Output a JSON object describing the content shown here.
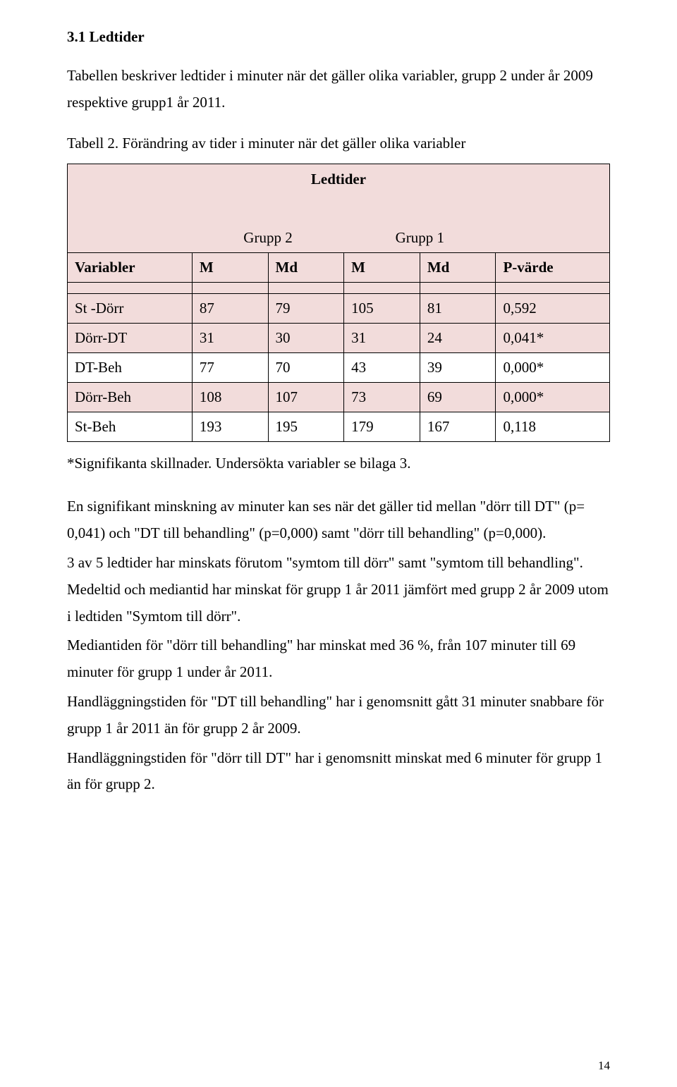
{
  "heading": "3.1 Ledtider",
  "intro": "Tabellen beskriver ledtider i minuter när det gäller olika variabler, grupp 2 under år 2009 respektive grupp1 år 2011.",
  "tableCaption": "Tabell 2. Förändring av tider i minuter när det gäller olika variabler",
  "table": {
    "title": "Ledtider",
    "group2": "Grupp 2",
    "group1": "Grupp 1",
    "headers": {
      "var": "Variabler",
      "m1": "M",
      "md1": "Md",
      "m2": "M",
      "md2": "Md",
      "p": "P-värde"
    },
    "rows": [
      {
        "var": "St -Dörr",
        "m1": "87",
        "md1": "79",
        "m2": "105",
        "md2": "81",
        "p": "0,592",
        "pink": true
      },
      {
        "var": "Dörr-DT",
        "m1": "31",
        "md1": "30",
        "m2": "31",
        "md2": "24",
        "p": "0,041*",
        "pink": true
      },
      {
        "var": "DT-Beh",
        "m1": "77",
        "md1": "70",
        "m2": "43",
        "md2": "39",
        "p": "0,000*",
        "pink": false
      },
      {
        "var": "Dörr-Beh",
        "m1": "108",
        "md1": "107",
        "m2": "73",
        "md2": "69",
        "p": "0,000*",
        "pink": true
      },
      {
        "var": "St-Beh",
        "m1": "193",
        "md1": "195",
        "m2": "179",
        "md2": "167",
        "p": "0,118",
        "pink": false
      }
    ]
  },
  "footnote": "*Signifikanta skillnader. Undersökta variabler se bilaga 3.",
  "body": {
    "p1": "En signifikant minskning av minuter kan ses när det gäller tid mellan \"dörr till DT\" (p= 0,041) och \"DT till behandling\" (p=0,000) samt \"dörr till behandling\" (p=0,000).",
    "p2": "3 av 5 ledtider har minskats förutom \"symtom till dörr\" samt \"symtom till behandling\". Medeltid och mediantid har minskat för grupp 1 år 2011 jämfört med grupp 2 år 2009 utom i ledtiden \"Symtom till dörr\".",
    "p3": "Mediantiden för \"dörr till behandling\" har minskat med 36 %, från 107 minuter till 69 minuter för grupp 1 under år 2011.",
    "p4": "Handläggningstiden för \"DT till behandling\" har i genomsnitt gått 31 minuter snabbare för grupp 1 år 2011 än för grupp 2 år 2009.",
    "p5": "Handläggningstiden för \"dörr till DT\" har i genomsnitt minskat med 6 minuter för grupp 1 än för grupp 2."
  },
  "pageNumber": "14"
}
